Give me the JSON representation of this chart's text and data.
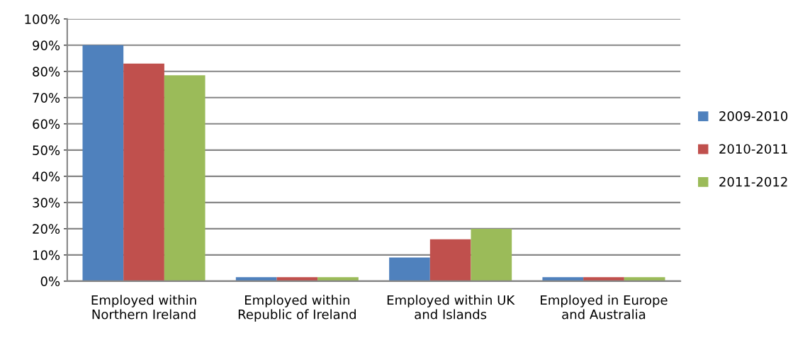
{
  "chart_data": {
    "type": "bar",
    "categories": [
      "Employed within\nNorthern Ireland",
      "Employed within\nRepublic of Ireland",
      "Employed within UK\nand Islands",
      "Employed in Europe\nand Australia"
    ],
    "series": [
      {
        "name": "2009-2010",
        "color": "#4f81bd",
        "values": [
          90,
          1.5,
          9,
          1.5
        ]
      },
      {
        "name": "2010-2011",
        "color": "#c0504d",
        "values": [
          83,
          1.5,
          16,
          1.5
        ]
      },
      {
        "name": "2011-2012",
        "color": "#9bbb59",
        "values": [
          78.5,
          1.5,
          20,
          1.5
        ]
      }
    ],
    "ylim": [
      0,
      100
    ],
    "yticks": [
      {
        "value": 0,
        "label": "0%"
      },
      {
        "value": 10,
        "label": "10%"
      },
      {
        "value": 20,
        "label": "20%"
      },
      {
        "value": 30,
        "label": "30%"
      },
      {
        "value": 40,
        "label": "40%"
      },
      {
        "value": 50,
        "label": "50%"
      },
      {
        "value": 60,
        "label": "60%"
      },
      {
        "value": 70,
        "label": "70%"
      },
      {
        "value": 80,
        "label": "80%"
      },
      {
        "value": 90,
        "label": "90%"
      },
      {
        "value": 100,
        "label": "100%"
      }
    ],
    "grid": "y",
    "legend": "right"
  }
}
